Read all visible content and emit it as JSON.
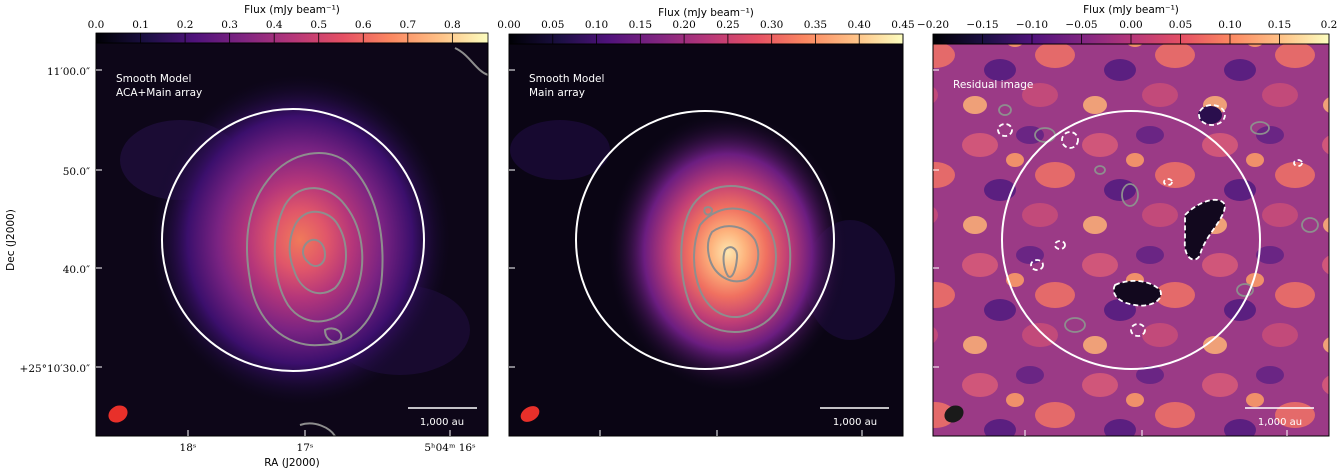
{
  "chart_data": [
    {
      "type": "heatmap",
      "colorbar": {
        "label": "Flux (mJy beam⁻¹)",
        "ticks": [
          "0.0",
          "0.1",
          "0.2",
          "0.3",
          "0.4",
          "0.5",
          "0.6",
          "0.7",
          "0.8"
        ],
        "range": [
          0.0,
          0.88
        ],
        "colormap": "magma"
      },
      "annotations": [
        "Smooth Model",
        "ACA+Main array"
      ],
      "scalebar": "1,000 au",
      "beam_color": "#e8302a",
      "ylabel": "Dec (J2000)",
      "xlabel": "RA (J2000)",
      "y_ticks": [
        "11′00.0″",
        "50.0″",
        "40.0″",
        "+25°10′30.0″"
      ],
      "x_ticks": [
        "18ˢ",
        "17ˢ",
        "5ʰ04ᵐ 16ˢ"
      ]
    },
    {
      "type": "heatmap",
      "colorbar": {
        "label": "Flux (mJy beam⁻¹)",
        "ticks": [
          "0.00",
          "0.05",
          "0.10",
          "0.15",
          "0.20",
          "0.25",
          "0.30",
          "0.35",
          "0.40",
          "0.45"
        ],
        "range": [
          0.0,
          0.45
        ],
        "colormap": "magma"
      },
      "annotations": [
        "Smooth Model",
        "Main array"
      ],
      "scalebar": "1,000 au",
      "beam_color": "#e8302a"
    },
    {
      "type": "heatmap",
      "colorbar": {
        "label": "Flux (mJy beam⁻¹)",
        "ticks": [
          "−0.20",
          "−0.15",
          "−0.10",
          "−0.05",
          "0.00",
          "0.05",
          "0.10",
          "0.15",
          "0.2"
        ],
        "range": [
          -0.2,
          0.2
        ],
        "colormap": "magma"
      },
      "annotations": [
        "Residual image"
      ],
      "scalebar": "1,000 au",
      "beam_color": "#1a1a1a"
    }
  ],
  "colors": {
    "contour": "#8e8e8e",
    "circle": "#ffffff",
    "negative_contour": "#ffffff"
  }
}
